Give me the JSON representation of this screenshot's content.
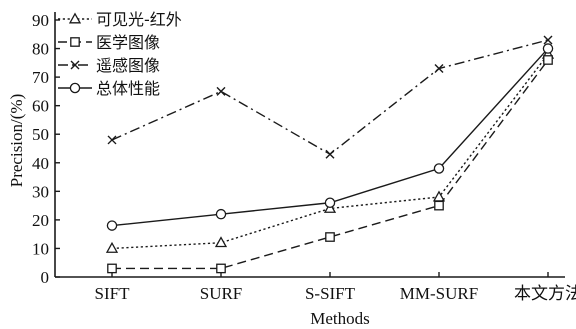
{
  "chart_data": {
    "type": "line",
    "categories": [
      "SIFT",
      "SURF",
      "S-SIFT",
      "MM-SURF",
      "本文方法"
    ],
    "series": [
      {
        "name": "可见光-红外",
        "values": [
          10,
          12,
          24,
          28,
          78
        ],
        "marker": "triangle",
        "dash": "dotted"
      },
      {
        "name": "医学图像",
        "values": [
          3,
          3,
          14,
          25,
          76
        ],
        "marker": "square",
        "dash": "dashed"
      },
      {
        "name": "遥感图像",
        "values": [
          48,
          65,
          43,
          73,
          83
        ],
        "marker": "x",
        "dash": "dashdot"
      },
      {
        "name": "总体性能",
        "values": [
          18,
          22,
          26,
          38,
          80
        ],
        "marker": "circle",
        "dash": "solid"
      }
    ],
    "xlabel": "Methods",
    "ylabel": "Precision/(%)",
    "ylim": [
      0,
      90
    ],
    "yticks": [
      0,
      10,
      20,
      30,
      40,
      50,
      60,
      70,
      80,
      90
    ],
    "grid": false,
    "legend_position": "top-left",
    "line_color": "#1a1a1a"
  }
}
